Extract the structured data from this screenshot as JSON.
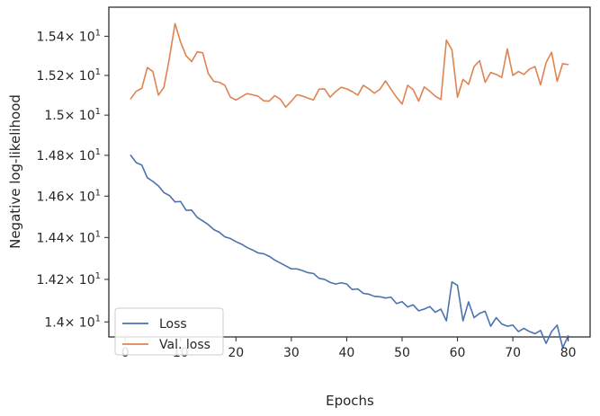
{
  "chart_data": {
    "type": "line",
    "xlabel": "Epochs",
    "ylabel": "Negative log-likelihood",
    "xlim": [
      -2.95,
      83.95
    ],
    "ylim": [
      13.93,
      15.55
    ],
    "yscale": "log",
    "grid": false,
    "legend_position": "lower-left",
    "x_ticks": [
      0,
      10,
      20,
      30,
      40,
      50,
      60,
      70,
      80
    ],
    "x_tick_labels": [
      "0",
      "10",
      "20",
      "30",
      "40",
      "50",
      "60",
      "70",
      "80"
    ],
    "y_ticks": [
      14.0,
      14.2,
      14.4,
      14.6,
      14.8,
      15.0,
      15.2,
      15.4
    ],
    "y_tick_mantissas": [
      "1.4",
      "1.42",
      "1.44",
      "1.46",
      "1.48",
      "1.5",
      "1.52",
      "1.54"
    ],
    "y_tick_multiplier": "× 10",
    "y_tick_exponent": "1",
    "x": [
      1,
      2,
      3,
      4,
      5,
      6,
      7,
      8,
      9,
      10,
      11,
      12,
      13,
      14,
      15,
      16,
      17,
      18,
      19,
      20,
      21,
      22,
      23,
      24,
      25,
      26,
      27,
      28,
      29,
      30,
      31,
      32,
      33,
      34,
      35,
      36,
      37,
      38,
      39,
      40,
      41,
      42,
      43,
      44,
      45,
      46,
      47,
      48,
      49,
      50,
      51,
      52,
      53,
      54,
      55,
      56,
      57,
      58,
      59,
      60,
      61,
      62,
      63,
      64,
      65,
      66,
      67,
      68,
      69,
      70,
      71,
      72,
      73,
      74,
      75,
      76,
      77,
      78,
      79,
      80
    ],
    "series": [
      {
        "name": "Loss",
        "color": "#4c72b0",
        "values": [
          14.8,
          14.764,
          14.752,
          14.69,
          14.672,
          14.65,
          14.617,
          14.603,
          14.572,
          14.574,
          14.531,
          14.532,
          14.497,
          14.48,
          14.462,
          14.438,
          14.425,
          14.403,
          14.395,
          14.38,
          14.368,
          14.352,
          14.34,
          14.326,
          14.322,
          14.31,
          14.292,
          14.278,
          14.264,
          14.25,
          14.25,
          14.242,
          14.232,
          14.228,
          14.205,
          14.2,
          14.186,
          14.178,
          14.184,
          14.178,
          14.152,
          14.155,
          14.134,
          14.13,
          14.12,
          14.118,
          14.112,
          14.116,
          14.086,
          14.095,
          14.07,
          14.08,
          14.052,
          14.06,
          14.072,
          14.045,
          14.06,
          14.005,
          14.188,
          14.172,
          14.005,
          14.094,
          14.02,
          14.04,
          14.05,
          13.98,
          14.02,
          13.99,
          13.98,
          13.985,
          13.955,
          13.97,
          13.955,
          13.945,
          13.96,
          13.9,
          13.955,
          13.985,
          13.88,
          13.935
        ]
      },
      {
        "name": "Val. loss",
        "color": "#dd8452",
        "values": [
          15.082,
          15.12,
          15.135,
          15.24,
          15.22,
          15.1,
          15.14,
          15.29,
          15.465,
          15.37,
          15.3,
          15.27,
          15.32,
          15.315,
          15.21,
          15.17,
          15.165,
          15.15,
          15.09,
          15.076,
          15.092,
          15.108,
          15.102,
          15.095,
          15.072,
          15.07,
          15.098,
          15.08,
          15.04,
          15.07,
          15.102,
          15.096,
          15.085,
          15.076,
          15.13,
          15.132,
          15.09,
          15.118,
          15.14,
          15.132,
          15.118,
          15.1,
          15.15,
          15.132,
          15.11,
          15.13,
          15.172,
          15.13,
          15.09,
          15.055,
          15.15,
          15.128,
          15.07,
          15.142,
          15.12,
          15.095,
          15.078,
          15.38,
          15.33,
          15.09,
          15.18,
          15.155,
          15.245,
          15.275,
          15.165,
          15.215,
          15.205,
          15.19,
          15.335,
          15.2,
          15.22,
          15.205,
          15.232,
          15.245,
          15.152,
          15.265,
          15.318,
          15.17,
          15.26,
          15.255
        ]
      }
    ]
  }
}
